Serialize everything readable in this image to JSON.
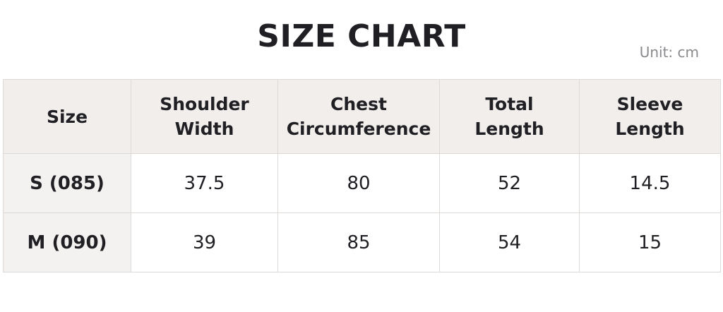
{
  "header": {
    "title": "SIZE CHART",
    "unit": "Unit: cm"
  },
  "table": {
    "columns": [
      "Size",
      "Shoulder Width",
      "Chest Circumference",
      "Total Length",
      "Sleeve Length"
    ],
    "rows": [
      [
        "S (085)",
        "37.5",
        "80",
        "52",
        "14.5"
      ],
      [
        "M (090)",
        "39",
        "85",
        "54",
        "15"
      ]
    ]
  }
}
